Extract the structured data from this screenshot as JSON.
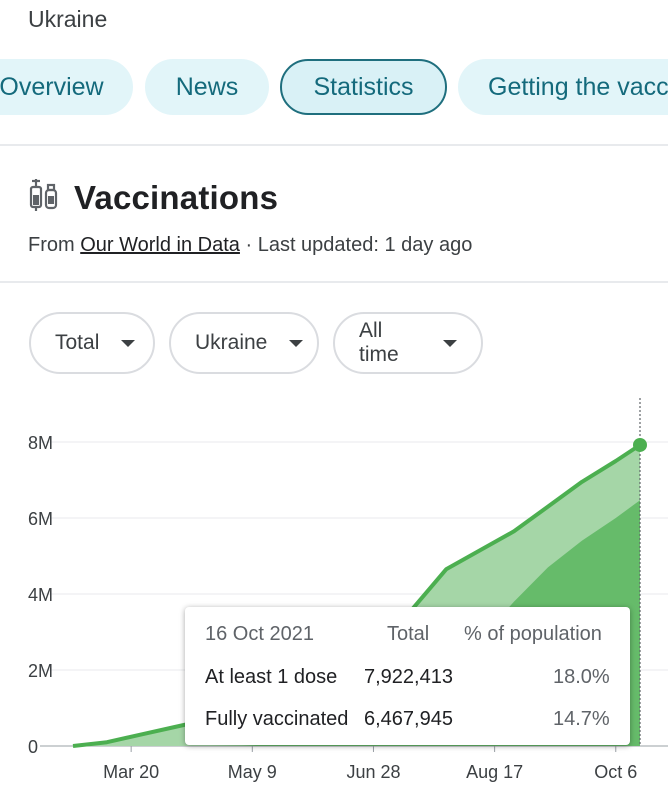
{
  "header": {
    "country": "Ukraine"
  },
  "tabs": [
    {
      "label": "Overview"
    },
    {
      "label": "News"
    },
    {
      "label": "Statistics",
      "active": true
    },
    {
      "label": "Getting the vaccine"
    }
  ],
  "section": {
    "title": "Vaccinations",
    "icon": "vaccine-icon",
    "source_prefix": "From",
    "source_link": "Our World in Data",
    "updated": "· Last updated: 1 day ago"
  },
  "filters": {
    "metric": "Total",
    "region": "Ukraine",
    "range": "All time"
  },
  "colors": {
    "line": "#4caf50",
    "first_dose_fill": "#a5d6a7",
    "fully_fill": "#66bb6a",
    "tab_text": "#146a7c"
  },
  "chart_data": {
    "type": "area",
    "x_ticks": [
      "Mar 20",
      "May 9",
      "Jun 28",
      "Aug 17",
      "Oct 6"
    ],
    "y_ticks": [
      "0",
      "2M",
      "4M",
      "6M",
      "8M"
    ],
    "ylim": [
      0,
      8000000
    ],
    "series": [
      {
        "name": "At least 1 dose",
        "x": [
          "Feb 24",
          "Mar 10",
          "Mar 24",
          "Apr 7",
          "Apr 21",
          "May 5",
          "May 19",
          "Jun 2",
          "Jun 16",
          "Jun 30",
          "Jul 14",
          "Jul 28",
          "Aug 11",
          "Aug 25",
          "Sep 8",
          "Sep 22",
          "Oct 6",
          "Oct 16"
        ],
        "values": [
          0,
          100000,
          300000,
          500000,
          700000,
          900000,
          1100000,
          1400000,
          1750000,
          2200000,
          3600000,
          4650000,
          5150000,
          5650000,
          6300000,
          6950000,
          7500000,
          7922413
        ]
      },
      {
        "name": "Fully vaccinated",
        "x": [
          "Feb 24",
          "Mar 10",
          "Mar 24",
          "Apr 7",
          "Apr 21",
          "May 5",
          "May 19",
          "Jun 2",
          "Jun 16",
          "Jun 30",
          "Jul 14",
          "Jul 28",
          "Aug 11",
          "Aug 25",
          "Sep 8",
          "Sep 22",
          "Oct 6",
          "Oct 16"
        ],
        "values": [
          0,
          0,
          0,
          0,
          0,
          10000,
          50000,
          150000,
          350000,
          600000,
          1000000,
          1600000,
          2800000,
          3800000,
          4700000,
          5400000,
          6000000,
          6467945
        ]
      }
    ]
  },
  "tooltip": {
    "date": "16 Oct 2021",
    "col_total": "Total",
    "col_pct": "% of population",
    "rows": [
      {
        "label": "At least 1 dose",
        "total": "7,922,413",
        "pct": "18.0%"
      },
      {
        "label": "Fully vaccinated",
        "total": "6,467,945",
        "pct": "14.7%"
      }
    ]
  }
}
